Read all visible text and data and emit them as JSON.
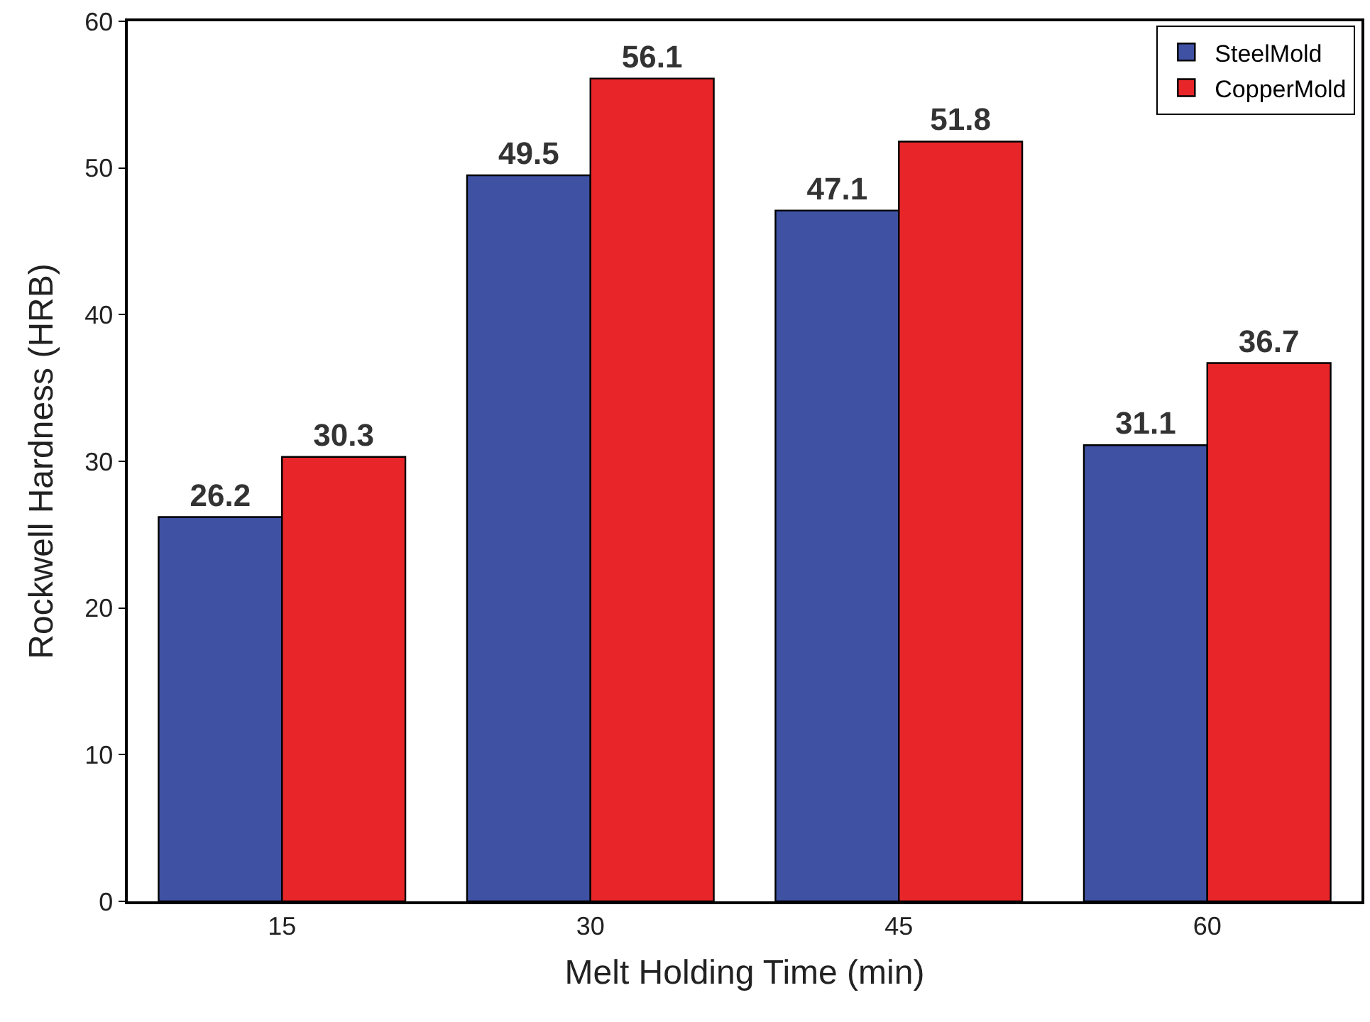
{
  "chart_data": {
    "type": "bar",
    "xlabel": "Melt Holding Time (min)",
    "ylabel": "Rockwell Hardness (HRB)",
    "categories": [
      "15",
      "30",
      "45",
      "60"
    ],
    "series": [
      {
        "name": "SteelMold",
        "color": "#3f51a3",
        "values": [
          26.2,
          49.5,
          47.1,
          31.1
        ]
      },
      {
        "name": "CopperMold",
        "color": "#e8262a",
        "values": [
          30.3,
          56.1,
          51.8,
          36.7
        ]
      }
    ],
    "ylim": [
      0,
      60
    ],
    "yticks": [
      0,
      10,
      20,
      30,
      40,
      50,
      60
    ],
    "legend": "top right",
    "data_labels": true
  }
}
